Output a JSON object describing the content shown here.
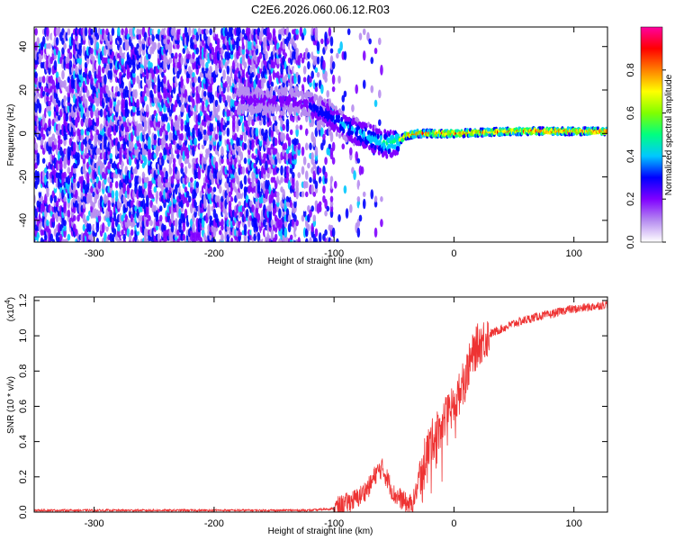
{
  "title": "C2E6.2026.060.06.12.R03",
  "chart_data": [
    {
      "type": "heatmap",
      "xlabel": "Height of straight line (km)",
      "ylabel": "Frequency (Hz)",
      "xlim": [
        -350,
        128
      ],
      "ylim": [
        -50,
        49
      ],
      "xticks": [
        -300,
        -200,
        -100,
        0,
        100
      ],
      "yticks": [
        -40,
        -20,
        0,
        20,
        40
      ],
      "xtick_labels": [
        "-300",
        "-200",
        "-100",
        "0",
        "100"
      ],
      "ytick_labels": [
        "-40",
        "-20",
        "0",
        "20",
        "40"
      ],
      "ridge_frequency": [
        [
          -130,
          15
        ],
        [
          -110,
          10
        ],
        [
          -90,
          3
        ],
        [
          -70,
          -2
        ],
        [
          -55,
          -5
        ],
        [
          -45,
          -3
        ],
        [
          -40,
          -1
        ],
        [
          -30,
          0
        ],
        [
          -20,
          0
        ],
        [
          0,
          0
        ],
        [
          50,
          1
        ],
        [
          100,
          1
        ],
        [
          128,
          1
        ]
      ],
      "colorbar": {
        "label": "Normalized spectral amplitude",
        "range": [
          0,
          1
        ],
        "ticks": [
          0.0,
          0.2,
          0.4,
          0.6,
          0.8
        ],
        "tick_labels": [
          "0.0",
          "0.2",
          "0.4",
          "0.6",
          "0.8"
        ],
        "colors": [
          "#ffffff",
          "#b68cf0",
          "#8000ff",
          "#0000ff",
          "#00c8ff",
          "#00ff80",
          "#80ff00",
          "#ffff00",
          "#ff8000",
          "#ff0000",
          "#ff00a0"
        ]
      },
      "grid": false
    },
    {
      "type": "line",
      "xlabel": "Height of straight line (km)",
      "ylabel": "SNR (10 * v/v)",
      "multiplier_label": "(x10",
      "multiplier_exponent": "4",
      "multiplier_close": ")",
      "xlim": [
        -350,
        128
      ],
      "ylim": [
        0,
        1.22
      ],
      "xticks": [
        -300,
        -200,
        -100,
        0,
        100
      ],
      "yticks": [
        0.0,
        0.2,
        0.4,
        0.6,
        0.8,
        1.0,
        1.2
      ],
      "xtick_labels": [
        "-300",
        "-200",
        "-100",
        "0",
        "100"
      ],
      "ytick_labels": [
        "0.0",
        "0.2",
        "0.4",
        "0.6",
        "0.8",
        "1.0",
        "1.2"
      ],
      "series": [
        {
          "color": "#ee3333",
          "x": [
            -350,
            -300,
            -250,
            -200,
            -150,
            -120,
            -100,
            -90,
            -80,
            -70,
            -65,
            -60,
            -55,
            -50,
            -45,
            -40,
            -35,
            -30,
            -25,
            -20,
            -15,
            -10,
            -5,
            0,
            5,
            10,
            15,
            20,
            25,
            30,
            40,
            50,
            60,
            70,
            80,
            90,
            95,
            100,
            110,
            120,
            128
          ],
          "y": [
            0.01,
            0.01,
            0.01,
            0.01,
            0.01,
            0.01,
            0.02,
            0.05,
            0.08,
            0.15,
            0.22,
            0.25,
            0.18,
            0.1,
            0.08,
            0.05,
            0.04,
            0.15,
            0.3,
            0.38,
            0.45,
            0.5,
            0.55,
            0.6,
            0.68,
            0.78,
            0.88,
            0.95,
            0.98,
            1.01,
            1.04,
            1.07,
            1.09,
            1.11,
            1.12,
            1.14,
            1.15,
            1.15,
            1.16,
            1.17,
            1.18
          ]
        }
      ],
      "grid": false
    }
  ]
}
